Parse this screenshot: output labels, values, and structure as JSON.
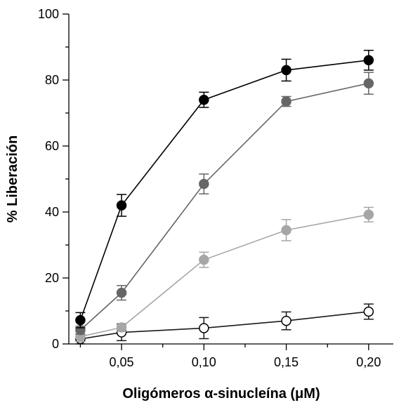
{
  "chart_data": {
    "type": "line",
    "title": "",
    "xlabel": "Oligómeros α-sinucleína (μM)",
    "ylabel": "% Liberación",
    "xlim": [
      0.018,
      0.215
    ],
    "ylim": [
      0,
      100
    ],
    "x_ticks": [
      {
        "value": 0.05,
        "label": "0,05"
      },
      {
        "value": 0.1,
        "label": "0,10"
      },
      {
        "value": 0.15,
        "label": "0,15"
      },
      {
        "value": 0.2,
        "label": "0,20"
      }
    ],
    "x_minor_ticks": [
      0.025,
      0.075,
      0.125,
      0.175
    ],
    "y_ticks": [
      {
        "value": 0,
        "label": "0"
      },
      {
        "value": 20,
        "label": "20"
      },
      {
        "value": 40,
        "label": "40"
      },
      {
        "value": 60,
        "label": "60"
      },
      {
        "value": 80,
        "label": "80"
      },
      {
        "value": 100,
        "label": "100"
      }
    ],
    "y_minor_ticks": [
      10,
      30,
      50,
      70,
      90
    ],
    "grid": false,
    "legend": "none",
    "x": [
      0.025,
      0.05,
      0.1,
      0.15,
      0.2
    ],
    "series": [
      {
        "values": [
          1.5,
          3.5,
          4.8,
          7.0,
          9.8
        ],
        "errors": [
          1.5,
          2.5,
          3.2,
          2.7,
          2.3
        ],
        "marker_fill": "#ffffff",
        "marker_stroke": "#000000",
        "line_color": "#1a1a1a"
      },
      {
        "values": [
          2.2,
          5.0,
          25.5,
          34.5,
          39.2
        ],
        "errors": [
          1.5,
          1.2,
          2.3,
          3.2,
          2.2
        ],
        "marker_fill": "#a6a6a6",
        "marker_stroke": "#a6a6a6",
        "line_color": "#a6a6a6"
      },
      {
        "values": [
          4.2,
          15.5,
          48.5,
          73.5,
          79.0
        ],
        "errors": [
          1.2,
          2.2,
          3.0,
          1.5,
          3.3
        ],
        "marker_fill": "#666666",
        "marker_stroke": "#666666",
        "line_color": "#666666"
      },
      {
        "values": [
          7.2,
          42.0,
          74.0,
          83.0,
          86.0
        ],
        "errors": [
          2.3,
          3.3,
          2.3,
          3.3,
          3.0
        ],
        "marker_fill": "#000000",
        "marker_stroke": "#000000",
        "line_color": "#000000"
      }
    ]
  }
}
